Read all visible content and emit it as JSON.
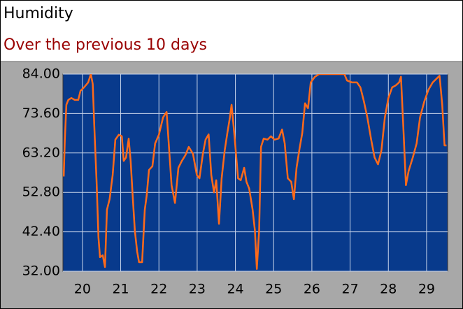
{
  "chart_data": {
    "type": "line",
    "title": "Humidity",
    "subtitle": "Over the previous 10 days",
    "x": [
      19.51,
      19.54,
      19.58,
      19.63,
      19.71,
      19.8,
      19.89,
      19.95,
      20.04,
      20.15,
      20.22,
      20.27,
      20.31,
      20.37,
      20.42,
      20.46,
      20.53,
      20.59,
      20.64,
      20.71,
      20.79,
      20.86,
      20.95,
      21.03,
      21.08,
      21.14,
      21.21,
      21.26,
      21.32,
      21.37,
      21.43,
      21.48,
      21.56,
      21.63,
      21.68,
      21.74,
      21.83,
      21.9,
      22.0,
      22.11,
      22.2,
      22.25,
      22.33,
      22.42,
      22.51,
      22.6,
      22.69,
      22.78,
      22.89,
      22.99,
      23.06,
      23.15,
      23.22,
      23.3,
      23.37,
      23.44,
      23.5,
      23.57,
      23.64,
      23.72,
      23.79,
      23.85,
      23.9,
      23.97,
      24.07,
      24.14,
      24.23,
      24.29,
      24.36,
      24.45,
      24.51,
      24.56,
      24.62,
      24.67,
      24.74,
      24.84,
      24.93,
      25.02,
      25.13,
      25.22,
      25.29,
      25.37,
      25.46,
      25.53,
      25.6,
      25.68,
      25.75,
      25.82,
      25.9,
      25.97,
      26.08,
      26.19,
      26.45,
      26.85,
      26.92,
      27.05,
      27.18,
      27.27,
      27.36,
      27.45,
      27.55,
      27.64,
      27.73,
      27.82,
      27.91,
      28.0,
      28.1,
      28.19,
      28.28,
      28.33,
      28.39,
      28.46,
      28.53,
      28.64,
      28.74,
      28.83,
      28.94,
      29.05,
      29.16,
      29.27,
      29.34,
      29.41,
      29.47,
      29.52
    ],
    "series": [
      {
        "name": "Humidity",
        "color": "#ff6a1a",
        "values": [
          57,
          66.7,
          75.9,
          77.2,
          77.7,
          77.2,
          77.2,
          79.6,
          80.5,
          81.8,
          84,
          81.4,
          70.4,
          55.6,
          40.9,
          35.7,
          36.2,
          33.1,
          48.2,
          51,
          57.4,
          66.7,
          68,
          67.6,
          61.1,
          62,
          67,
          61.1,
          51,
          42.7,
          37.2,
          34.4,
          34.4,
          48.2,
          51.9,
          58.7,
          59.7,
          65.7,
          68,
          72.6,
          74,
          66.7,
          54.7,
          50,
          59.3,
          61.1,
          62.6,
          64.8,
          63,
          57.4,
          56.5,
          63,
          66.7,
          68.1,
          57.4,
          52.8,
          56,
          44.5,
          56.5,
          63.9,
          68.5,
          72.2,
          75.9,
          68.5,
          56.5,
          56,
          59.3,
          55.6,
          53.8,
          48.2,
          42.7,
          32.6,
          42.7,
          64.8,
          67,
          66.7,
          67.6,
          66.7,
          67,
          69.4,
          65.7,
          56.5,
          55.6,
          51,
          59.3,
          64.5,
          68.5,
          76.3,
          75,
          81.8,
          83.3,
          84,
          84,
          84,
          82.3,
          81.8,
          81.8,
          80.5,
          76.8,
          72.6,
          66.7,
          62,
          60.2,
          63.9,
          72.6,
          77.7,
          80.5,
          81,
          81.8,
          83.3,
          70.4,
          54.7,
          58.4,
          62,
          65.7,
          72.6,
          76.8,
          79.9,
          81.8,
          82.9,
          83.6,
          75.9,
          65.2,
          65.2
        ]
      }
    ],
    "xlim": [
      19.49,
      29.55
    ],
    "xticks": [
      20,
      21,
      22,
      23,
      24,
      25,
      26,
      27,
      28,
      29
    ],
    "ylim": [
      32,
      84
    ],
    "yticks": [
      {
        "value": 32,
        "label": "32.00"
      },
      {
        "value": 42.4,
        "label": "42.40"
      },
      {
        "value": 52.8,
        "label": "52.80"
      },
      {
        "value": 63.2,
        "label": "63.20"
      },
      {
        "value": 73.6,
        "label": "73.60"
      },
      {
        "value": 84,
        "label": "84.00"
      }
    ],
    "grid": true
  }
}
